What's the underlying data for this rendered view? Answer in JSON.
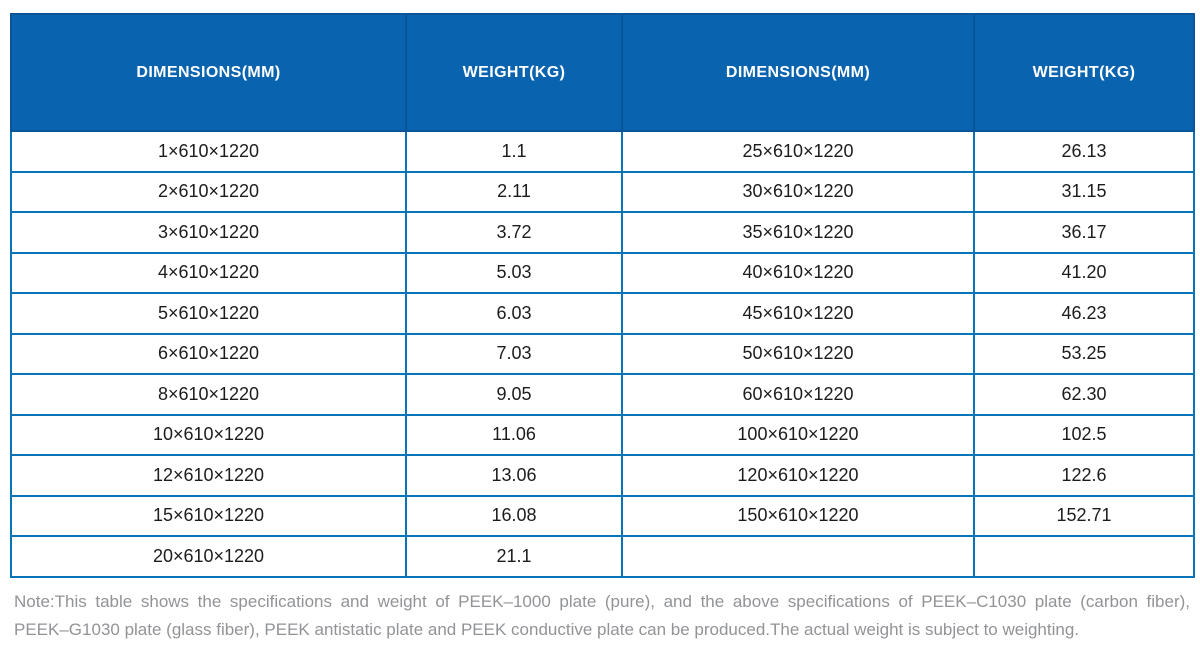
{
  "table": {
    "columns": [
      "DIMENSIONS(MM)",
      "WEIGHT(KG)",
      "DIMENSIONS(MM)",
      "WEIGHT(KG)"
    ],
    "rows": [
      [
        "1×610×1220",
        "1.1",
        "25×610×1220",
        "26.13"
      ],
      [
        "2×610×1220",
        "2.11",
        "30×610×1220",
        "31.15"
      ],
      [
        "3×610×1220",
        "3.72",
        "35×610×1220",
        "36.17"
      ],
      [
        "4×610×1220",
        "5.03",
        "40×610×1220",
        "41.20"
      ],
      [
        "5×610×1220",
        "6.03",
        "45×610×1220",
        "46.23"
      ],
      [
        "6×610×1220",
        "7.03",
        "50×610×1220",
        "53.25"
      ],
      [
        "8×610×1220",
        "9.05",
        "60×610×1220",
        "62.30"
      ],
      [
        "10×610×1220",
        "11.06",
        "100×610×1220",
        "102.5"
      ],
      [
        "12×610×1220",
        "13.06",
        "120×610×1220",
        "122.6"
      ],
      [
        "15×610×1220",
        "16.08",
        "150×610×1220",
        "152.71"
      ],
      [
        "20×610×1220",
        "21.1",
        "",
        ""
      ]
    ]
  },
  "note": {
    "line1": "Note:This table shows the specifications and weight of PEEK–1000 plate (pure), and the above specifications of PEEK–C1030 plate (carbon fiber),",
    "line2": "PEEK–G1030 plate (glass fiber), PEEK antistatic plate and PEEK conductive plate can be produced.The actual weight is subject to weighting."
  },
  "colors": {
    "header_bg": "#0a63ae",
    "header_divider": "#0a5597",
    "grid_line": "#0b74b8",
    "header_text": "#ffffff",
    "cell_text": "#1c1c1e",
    "note_text": "#919396"
  }
}
